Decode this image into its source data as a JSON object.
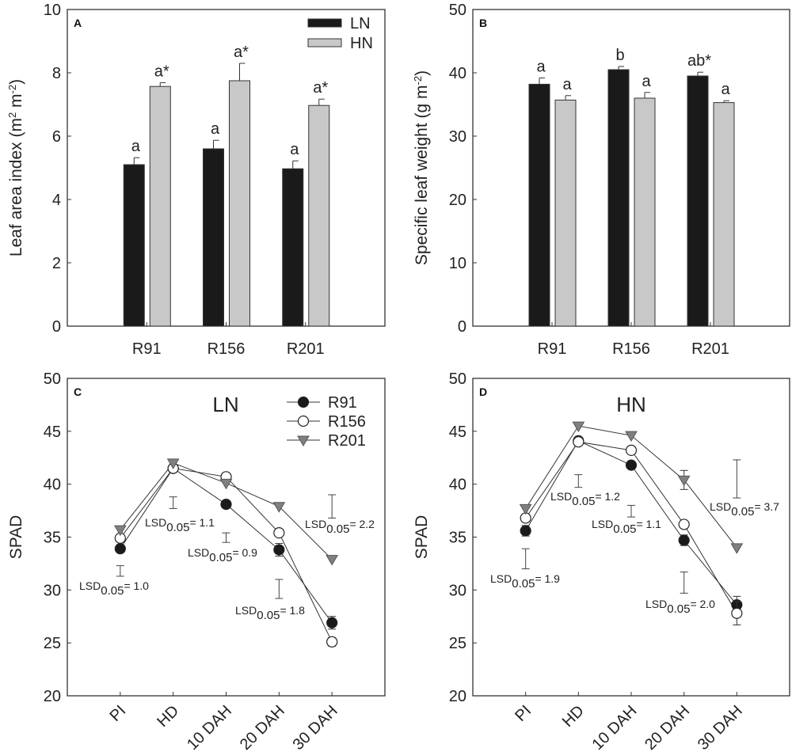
{
  "chart_data": [
    {
      "id": "A",
      "type": "bar",
      "panel_label": "A",
      "ylabel": "Leaf area index (m",
      "ylabel_parts": [
        "Leaf area index (m",
        "2",
        " m",
        "-2",
        ")"
      ],
      "ylim": [
        0,
        10
      ],
      "yticks": [
        "0",
        "2",
        "4",
        "6",
        "8",
        "10"
      ],
      "categories": [
        "R91",
        "R156",
        "R201"
      ],
      "series": [
        {
          "name": "LN",
          "color": "#1a1a1a",
          "values": [
            5.1,
            5.6,
            4.97
          ],
          "errors": [
            0.22,
            0.27,
            0.25
          ],
          "letters": [
            "a",
            "a",
            "a"
          ]
        },
        {
          "name": "HN",
          "color": "#c8c8c8",
          "values": [
            7.57,
            7.75,
            6.97
          ],
          "errors": [
            0.12,
            0.55,
            0.2
          ],
          "letters": [
            "a*",
            "",
            "a*"
          ]
        }
      ],
      "extra_labels": [
        {
          "series": 1,
          "index": 1,
          "text": "a*"
        }
      ],
      "legend": "top-right"
    },
    {
      "id": "B",
      "type": "bar",
      "panel_label": "B",
      "ylabel_parts": [
        "Specific leaf weight (g m",
        "-2",
        ")",
        "",
        ""
      ],
      "ylim": [
        0,
        50
      ],
      "yticks": [
        "0",
        "10",
        "20",
        "30",
        "40",
        "50"
      ],
      "categories": [
        "R91",
        "R156",
        "R201"
      ],
      "series": [
        {
          "name": "LN",
          "color": "#1a1a1a",
          "values": [
            38.2,
            40.5,
            39.5
          ],
          "errors": [
            1.0,
            0.5,
            0.6
          ],
          "letters": [
            "a",
            "b",
            "ab*"
          ]
        },
        {
          "name": "HN",
          "color": "#c8c8c8",
          "values": [
            35.7,
            36.0,
            35.3
          ],
          "errors": [
            0.7,
            0.9,
            0.3
          ],
          "letters": [
            "a",
            "a",
            "a"
          ]
        }
      ]
    },
    {
      "id": "C",
      "type": "line",
      "panel_label": "C",
      "title": "LN",
      "ylabel": "SPAD",
      "ylim": [
        20,
        50
      ],
      "yticks": [
        "20",
        "25",
        "30",
        "35",
        "40",
        "45",
        "50"
      ],
      "x": [
        "PI",
        "HD",
        "10 DAH",
        "20 DAH",
        "30 DAH"
      ],
      "series": [
        {
          "name": "R91",
          "marker": "filled-circle",
          "color": "#1a1a1a",
          "values": [
            33.9,
            41.5,
            38.1,
            33.8,
            26.9
          ],
          "errors": [
            0,
            0,
            0,
            0.6,
            0.6
          ]
        },
        {
          "name": "R156",
          "marker": "open-circle",
          "color": "#ffffff",
          "values": [
            34.9,
            41.5,
            40.7,
            35.4,
            25.1
          ],
          "errors": [
            0,
            0,
            0,
            0,
            0.4
          ]
        },
        {
          "name": "R201",
          "marker": "triangle-down",
          "color": "#808080",
          "values": [
            35.7,
            42.0,
            40.1,
            37.9,
            32.9
          ],
          "errors": [
            0,
            0,
            0,
            0,
            0
          ]
        }
      ],
      "lsd": [
        {
          "prefix": "LSD",
          "sub": "0.05",
          "value": "= 1.0",
          "range": [
            31.3,
            32.3
          ]
        },
        {
          "prefix": "LSD",
          "sub": "0.05",
          "value": "= 1.1",
          "range": [
            37.7,
            38.8
          ]
        },
        {
          "prefix": "LSD",
          "sub": "0.05",
          "value": "= 0.9",
          "range": [
            34.5,
            35.4
          ]
        },
        {
          "prefix": "LSD",
          "sub": "0.05",
          "value": "= 1.8",
          "range": [
            29.2,
            31.0
          ]
        },
        {
          "prefix": "LSD",
          "sub": "0.05",
          "value": "= 2.2",
          "range": [
            36.8,
            39.0
          ]
        }
      ],
      "legend": "top-right"
    },
    {
      "id": "D",
      "type": "line",
      "panel_label": "D",
      "title": "HN",
      "ylabel": "SPAD",
      "ylim": [
        20,
        50
      ],
      "yticks": [
        "20",
        "25",
        "30",
        "35",
        "40",
        "45",
        "50"
      ],
      "x": [
        "PI",
        "HD",
        "10 DAH",
        "20 DAH",
        "30 DAH"
      ],
      "series": [
        {
          "name": "R91",
          "marker": "filled-circle",
          "color": "#1a1a1a",
          "values": [
            35.6,
            44.1,
            41.8,
            34.7,
            28.6
          ],
          "errors": [
            0.5,
            0,
            0,
            0.5,
            0.8
          ]
        },
        {
          "name": "R156",
          "marker": "open-circle",
          "color": "#ffffff",
          "values": [
            36.8,
            44.0,
            43.2,
            36.2,
            27.8
          ],
          "errors": [
            0,
            0.3,
            0,
            0,
            1.1
          ]
        },
        {
          "name": "R201",
          "marker": "triangle-down",
          "color": "#808080",
          "values": [
            37.7,
            45.5,
            44.6,
            40.4,
            34.0
          ],
          "errors": [
            0,
            0,
            0,
            0.9,
            0
          ]
        }
      ],
      "lsd": [
        {
          "prefix": "LSD",
          "sub": "0.05",
          "value": "= 1.9",
          "range": [
            32.0,
            33.9
          ]
        },
        {
          "prefix": "LSD",
          "sub": "0.05",
          "value": "= 1.2",
          "range": [
            39.7,
            40.9
          ]
        },
        {
          "prefix": "LSD",
          "sub": "0.05",
          "value": "= 1.1",
          "range": [
            36.9,
            38.0
          ]
        },
        {
          "prefix": "LSD",
          "sub": "0.05",
          "value": "= 2.0",
          "range": [
            29.7,
            31.7
          ]
        },
        {
          "prefix": "LSD",
          "sub": "0.05",
          "value": "= 3.7",
          "range": [
            38.7,
            42.3
          ]
        }
      ]
    }
  ]
}
